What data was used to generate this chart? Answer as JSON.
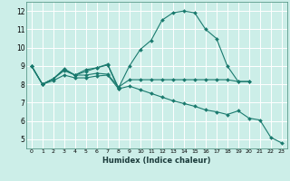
{
  "xlabel": "Humidex (Indice chaleur)",
  "bg_color": "#cceee8",
  "grid_color": "#ffffff",
  "line_color": "#1a7a6e",
  "xlim": [
    -0.5,
    23.5
  ],
  "ylim": [
    4.5,
    12.5
  ],
  "xticks": [
    0,
    1,
    2,
    3,
    4,
    5,
    6,
    7,
    8,
    9,
    10,
    11,
    12,
    13,
    14,
    15,
    16,
    17,
    18,
    19,
    20,
    21,
    22,
    23
  ],
  "yticks": [
    5,
    6,
    7,
    8,
    9,
    10,
    11,
    12
  ],
  "line1_x": [
    0,
    1,
    2,
    3,
    4,
    5,
    6,
    7,
    8,
    9,
    10,
    11,
    12,
    13,
    14,
    15,
    16,
    17,
    18,
    19,
    20
  ],
  "line1_y": [
    9.0,
    8.0,
    8.3,
    8.8,
    8.5,
    8.8,
    8.9,
    9.1,
    7.8,
    9.0,
    9.9,
    10.4,
    11.5,
    11.9,
    12.0,
    11.9,
    11.0,
    10.5,
    9.0,
    8.15,
    8.15
  ],
  "line2_x": [
    0,
    1,
    2,
    3,
    4,
    5,
    6,
    7,
    8,
    9,
    10,
    11,
    12,
    13,
    14,
    15,
    16,
    17,
    18,
    19,
    20
  ],
  "line2_y": [
    9.0,
    8.0,
    8.3,
    8.75,
    8.5,
    8.5,
    8.6,
    8.55,
    7.85,
    8.25,
    8.25,
    8.25,
    8.25,
    8.25,
    8.25,
    8.25,
    8.25,
    8.25,
    8.25,
    8.15,
    8.15
  ],
  "line3_x": [
    0,
    1,
    2,
    3,
    4,
    5,
    6,
    7,
    8,
    9,
    10,
    11,
    12,
    13,
    14,
    15,
    16,
    17,
    18,
    19,
    20,
    21,
    22,
    23
  ],
  "line3_y": [
    9.0,
    8.0,
    8.2,
    8.5,
    8.35,
    8.35,
    8.45,
    8.5,
    7.75,
    7.9,
    7.7,
    7.5,
    7.3,
    7.1,
    6.95,
    6.8,
    6.6,
    6.5,
    6.35,
    6.55,
    6.15,
    6.05,
    5.1,
    4.8
  ],
  "line4_x": [
    0,
    1,
    2,
    3,
    4,
    5,
    6,
    7,
    8
  ],
  "line4_y": [
    9.0,
    8.0,
    8.3,
    8.85,
    8.5,
    8.7,
    8.9,
    9.05,
    7.75
  ]
}
